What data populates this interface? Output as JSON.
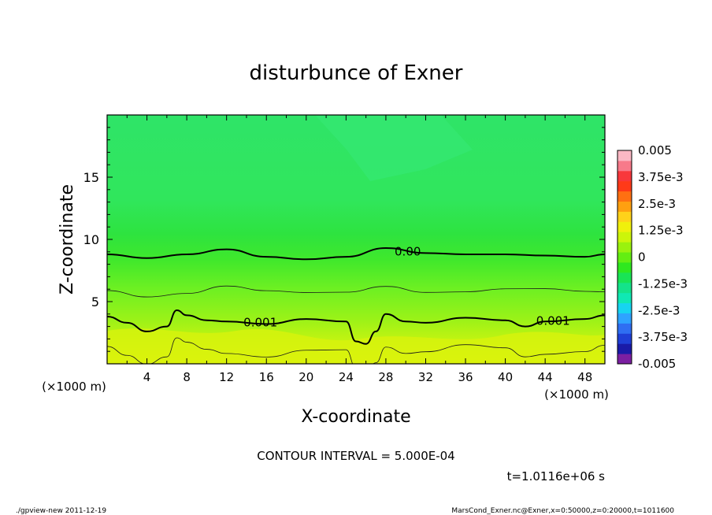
{
  "chart_data": {
    "type": "heatmap",
    "title": "disturbunce of Exner",
    "xlabel": "X-coordinate",
    "ylabel": "Z-coordinate",
    "x_unit": "(×1000 m)",
    "y_unit": "(×1000 m)",
    "xlim": [
      0,
      50
    ],
    "ylim": [
      0,
      20
    ],
    "x_ticks": [
      4,
      8,
      12,
      16,
      20,
      24,
      28,
      32,
      36,
      40,
      44,
      48
    ],
    "y_ticks": [
      5,
      10,
      15
    ],
    "colorbar": {
      "labels": [
        "0.005",
        "3.75e-3",
        "2.5e-3",
        "1.25e-3",
        "0",
        "-1.25e-3",
        "-2.5e-3",
        "-3.75e-3",
        "-0.005"
      ],
      "colors": [
        "#7b1fa2",
        "#1a1aa8",
        "#1f3fd6",
        "#2f6ef2",
        "#2ea3ff",
        "#17d4f0",
        "#10e8b4",
        "#14e38a",
        "#19e455",
        "#2ee81f",
        "#63ee12",
        "#9af20e",
        "#ccf50a",
        "#f0f00c",
        "#ffd21a",
        "#ffa010",
        "#ff7012",
        "#ff3a18",
        "#f8383c",
        "#f77a8a",
        "#fbb8c4"
      ]
    },
    "contours": [
      {
        "level": "0.00",
        "x": [
          0,
          4,
          8,
          12,
          16,
          20,
          24,
          28,
          32,
          36,
          40,
          44,
          48,
          50
        ],
        "z": [
          8.8,
          8.5,
          8.8,
          9.2,
          8.6,
          8.4,
          8.6,
          9.3,
          8.9,
          8.8,
          8.8,
          8.7,
          8.6,
          8.8
        ]
      },
      {
        "level": "0.001",
        "x": [
          0,
          2,
          4,
          6,
          7,
          8,
          10,
          12,
          16,
          20,
          24,
          25,
          26,
          27,
          28,
          30,
          32,
          36,
          40,
          42,
          44,
          48,
          50
        ],
        "z": [
          3.8,
          3.3,
          2.6,
          3.0,
          4.3,
          3.9,
          3.5,
          3.4,
          3.2,
          3.6,
          3.4,
          1.8,
          1.6,
          2.6,
          4.0,
          3.4,
          3.3,
          3.7,
          3.5,
          3.0,
          3.4,
          3.6,
          3.9
        ]
      }
    ],
    "contour_interval": "CONTOUR INTERVAL = 5.000E-04",
    "time": "t=1.0116e+06 s"
  },
  "footer": {
    "left": "./gpview-new   2011-12-19",
    "right": "MarsCond_Exner.nc@Exner,x=0:50000,z=0:20000,t=1011600"
  }
}
